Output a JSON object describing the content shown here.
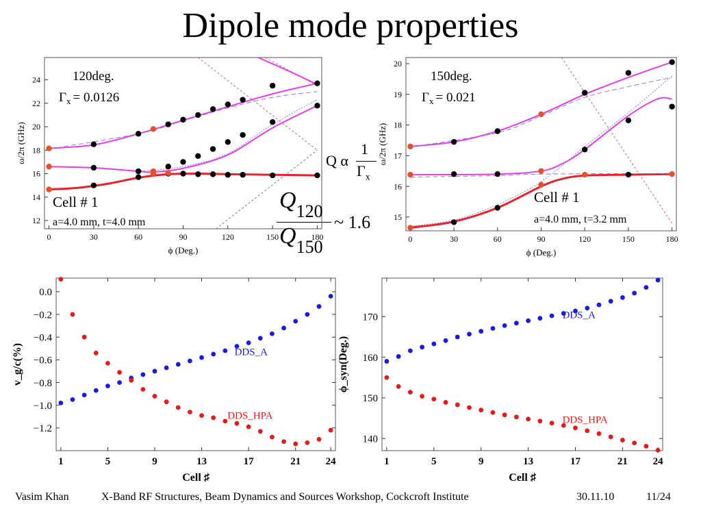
{
  "slide": {
    "title": "Dipole mode properties",
    "footer": {
      "author": "Vasim Khan",
      "event": "X-Band RF Structures, Beam Dynamics and Sources Workshop, Cockcroft Institute",
      "date": "30.11.10",
      "page": "11/24"
    },
    "eq_q_prefix": "Q α",
    "eq_q_num": "1",
    "eq_q_den": "Γ",
    "eq_q_den_sub": "x",
    "eq_ratio_num_sym": "Q",
    "eq_ratio_num_sub": "120",
    "eq_ratio_den_sym": "Q",
    "eq_ratio_den_sub": "150",
    "eq_ratio_value": "~ 1.6"
  },
  "chart_data": [
    {
      "type": "line",
      "id": "disp120",
      "ylabel": "ω/2π (GHz)",
      "xlabel": "ϕ (Deg.)",
      "xlim": [
        -3,
        183
      ],
      "ylim": [
        11.3,
        25.9
      ],
      "xticks": [
        0,
        30,
        60,
        90,
        120,
        150,
        180
      ],
      "yticks": [
        12,
        14,
        16,
        18,
        20,
        22,
        24
      ],
      "annot": {
        "phase": "120deg.",
        "gamma_sym": "Γ",
        "gamma_sub": "x",
        "gamma_val": "= 0.0126",
        "cell": "Cell # 1",
        "dims": "a=4.0 mm, t=4.0 mm"
      },
      "light_lines": [
        {
          "color": "#c0648c",
          "points": [
            [
              100,
              25.9
            ],
            [
              180,
              18
            ]
          ]
        },
        {
          "color": "#c0648c",
          "points": [
            [
              145,
              25.9
            ],
            [
              180,
              23.5
            ]
          ]
        },
        {
          "color": "#6c6cd2",
          "points": [
            [
              112,
              11.3
            ],
            [
              180,
              18
            ]
          ]
        }
      ],
      "series": [
        {
          "color": "#e6232d",
          "width": 3,
          "points": [
            [
              0,
              14.65
            ],
            [
              20,
              14.8
            ],
            [
              40,
              15.15
            ],
            [
              60,
              15.65
            ],
            [
              80,
              15.95
            ],
            [
              100,
              16.0
            ],
            [
              120,
              15.95
            ],
            [
              150,
              15.9
            ],
            [
              180,
              15.85
            ]
          ]
        },
        {
          "color": "#e63ce6",
          "width": 2,
          "points": [
            [
              0,
              16.6
            ],
            [
              30,
              16.5
            ],
            [
              60,
              16.2
            ],
            [
              70,
              16.15
            ],
            [
              90,
              16.45
            ],
            [
              120,
              17.6
            ],
            [
              150,
              19.9
            ],
            [
              180,
              21.8
            ]
          ]
        },
        {
          "color": "#e63ce6",
          "width": 2,
          "points": [
            [
              0,
              18.15
            ],
            [
              30,
              18.45
            ],
            [
              60,
              19.4
            ],
            [
              90,
              20.55
            ],
            [
              120,
              21.7
            ],
            [
              150,
              22.8
            ],
            [
              180,
              23.7
            ]
          ]
        },
        {
          "color": "#e63ce6",
          "width": 2,
          "points": [
            [
              135,
              26.2
            ],
            [
              160,
              24.8
            ],
            [
              180,
              23.6
            ]
          ]
        },
        {
          "color": "#8080dc",
          "width": 1,
          "dash": "7,4",
          "points": [
            [
              0,
              18.1
            ],
            [
              60,
              19.4
            ],
            [
              90,
              20.5
            ],
            [
              120,
              21.6
            ],
            [
              150,
              22.5
            ],
            [
              180,
              23.0
            ]
          ]
        },
        {
          "color": "#8080dc",
          "width": 1,
          "dash": "2,2",
          "points": [
            [
              60,
              16.2
            ],
            [
              90,
              16.6
            ],
            [
              120,
              17.7
            ],
            [
              150,
              20.2
            ],
            [
              180,
              22.3
            ]
          ]
        }
      ],
      "markers": [
        {
          "color": "#000000",
          "points": [
            [
              30,
              18.5
            ],
            [
              60,
              19.4
            ],
            [
              80,
              20.2
            ],
            [
              90,
              20.6
            ],
            [
              100,
              21.0
            ],
            [
              110,
              21.5
            ],
            [
              120,
              21.9
            ],
            [
              130,
              22.3
            ],
            [
              150,
              23.5
            ],
            [
              180,
              23.7
            ],
            [
              30,
              16.5
            ],
            [
              60,
              16.2
            ],
            [
              80,
              16.6
            ],
            [
              90,
              17.0
            ],
            [
              100,
              17.5
            ],
            [
              110,
              18.1
            ],
            [
              120,
              18.7
            ],
            [
              130,
              19.3
            ],
            [
              150,
              20.4
            ],
            [
              180,
              21.8
            ],
            [
              30,
              15.0
            ],
            [
              60,
              15.7
            ],
            [
              80,
              16.0
            ],
            [
              90,
              16.0
            ],
            [
              100,
              15.95
            ],
            [
              110,
              15.95
            ],
            [
              120,
              15.9
            ],
            [
              130,
              15.9
            ],
            [
              150,
              15.85
            ],
            [
              180,
              15.85
            ]
          ]
        },
        {
          "color": "#e6502d",
          "points": [
            [
              0,
              14.65
            ],
            [
              70,
              16.0
            ],
            [
              80,
              16.05
            ],
            [
              0,
              16.6
            ],
            [
              70,
              16.2
            ],
            [
              0,
              18.15
            ],
            [
              70,
              19.8
            ]
          ]
        }
      ]
    },
    {
      "type": "line",
      "id": "disp150",
      "ylabel": "ω/2π (GHz)",
      "xlabel": "ϕ (Deg.)",
      "xlim": [
        -3,
        183
      ],
      "ylim": [
        14.55,
        20.2
      ],
      "xticks": [
        0,
        30,
        60,
        90,
        120,
        150,
        180
      ],
      "yticks": [
        15,
        16,
        17,
        18,
        19,
        20
      ],
      "annot": {
        "phase": "150deg.",
        "gamma_sym": "Γ",
        "gamma_sub": "x",
        "gamma_val": "= 0.021",
        "cell": "Cell # 1",
        "dims": "a=4.0 mm, t=3.2 mm"
      },
      "light_lines": [
        {
          "color": "#c0648c",
          "points": [
            [
              104,
              20.2
            ],
            [
              180,
              14.8
            ]
          ]
        }
      ],
      "series": [
        {
          "color": "#e6232d",
          "width": 3,
          "points": [
            [
              0,
              14.65
            ],
            [
              30,
              14.85
            ],
            [
              60,
              15.3
            ],
            [
              90,
              16.0
            ],
            [
              105,
              16.25
            ],
            [
              120,
              16.35
            ],
            [
              150,
              16.38
            ],
            [
              180,
              16.4
            ]
          ]
        },
        {
          "color": "#e63ce6",
          "width": 2,
          "points": [
            [
              0,
              16.38
            ],
            [
              60,
              16.4
            ],
            [
              90,
              16.5
            ],
            [
              105,
              16.75
            ],
            [
              120,
              17.2
            ],
            [
              150,
              18.3
            ],
            [
              170,
              18.85
            ],
            [
              180,
              18.85
            ]
          ]
        },
        {
          "color": "#e63ce6",
          "width": 2,
          "points": [
            [
              0,
              17.3
            ],
            [
              30,
              17.45
            ],
            [
              60,
              17.8
            ],
            [
              90,
              18.35
            ],
            [
              120,
              19.0
            ],
            [
              150,
              19.55
            ],
            [
              180,
              20.05
            ]
          ]
        },
        {
          "color": "#8080dc",
          "width": 1,
          "dash": "7,4",
          "points": [
            [
              0,
              17.28
            ],
            [
              60,
              17.75
            ],
            [
              90,
              18.3
            ],
            [
              120,
              18.9
            ],
            [
              150,
              19.25
            ],
            [
              180,
              19.55
            ]
          ]
        },
        {
          "color": "#8080dc",
          "width": 1,
          "dash": "7,4",
          "points": [
            [
              0,
              16.3
            ],
            [
              60,
              16.35
            ],
            [
              90,
              16.4
            ],
            [
              180,
              16.42
            ]
          ]
        },
        {
          "color": "#8080dc",
          "width": 1,
          "dash": "2,2",
          "points": [
            [
              0,
              14.7
            ],
            [
              30,
              14.9
            ],
            [
              60,
              15.4
            ],
            [
              90,
              16.15
            ],
            [
              120,
              17.3
            ],
            [
              150,
              18.4
            ],
            [
              180,
              19.6
            ]
          ]
        }
      ],
      "markers": [
        {
          "color": "#000000",
          "points": [
            [
              30,
              17.45
            ],
            [
              60,
              17.8
            ],
            [
              120,
              19.05
            ],
            [
              150,
              19.7
            ],
            [
              180,
              20.05
            ],
            [
              30,
              16.4
            ],
            [
              60,
              16.4
            ],
            [
              120,
              17.2
            ],
            [
              150,
              18.15
            ],
            [
              180,
              18.6
            ],
            [
              30,
              14.83
            ],
            [
              60,
              15.3
            ],
            [
              150,
              16.38
            ]
          ]
        },
        {
          "color": "#e6502d",
          "points": [
            [
              0,
              14.65
            ],
            [
              90,
              16.05
            ],
            [
              120,
              16.38
            ],
            [
              180,
              16.4
            ],
            [
              0,
              16.38
            ],
            [
              90,
              16.5
            ],
            [
              0,
              17.3
            ],
            [
              90,
              18.35
            ]
          ]
        }
      ]
    },
    {
      "type": "scatter",
      "id": "vg",
      "ylabel": "v_g/c(%)",
      "xlabel": "Cell ♯",
      "xlim": [
        0.6,
        24.4
      ],
      "ylim": [
        -1.4,
        0.12
      ],
      "xticks": [
        1,
        5,
        9,
        13,
        17,
        21,
        24
      ],
      "yticks": [
        0.0,
        -0.2,
        -0.4,
        -0.6,
        -0.8,
        -1.0,
        -1.2
      ],
      "ytick_labels": [
        "0.0",
        "−0.2",
        "−0.4",
        "−0.6",
        "−0.8",
        "−1.0",
        "−1.2"
      ],
      "series": [
        {
          "name": "DDS_A",
          "color": "#1a1ae6",
          "x": [
            1,
            2,
            3,
            4,
            5,
            6,
            7,
            8,
            9,
            10,
            11,
            12,
            13,
            14,
            15,
            16,
            17,
            18,
            19,
            20,
            21,
            22,
            23,
            24
          ],
          "values": [
            -0.98,
            -0.95,
            -0.91,
            -0.87,
            -0.83,
            -0.8,
            -0.76,
            -0.73,
            -0.7,
            -0.67,
            -0.64,
            -0.61,
            -0.58,
            -0.55,
            -0.52,
            -0.48,
            -0.45,
            -0.41,
            -0.37,
            -0.32,
            -0.26,
            -0.2,
            -0.13,
            -0.04
          ]
        },
        {
          "name": "DDS_HPA",
          "color": "#e61a1a",
          "x": [
            1,
            2,
            3,
            4,
            5,
            6,
            7,
            8,
            9,
            10,
            11,
            12,
            13,
            14,
            15,
            16,
            17,
            18,
            19,
            20,
            21,
            22,
            23,
            24
          ],
          "values": [
            0.11,
            -0.2,
            -0.4,
            -0.54,
            -0.63,
            -0.71,
            -0.78,
            -0.86,
            -0.92,
            -0.97,
            -1.02,
            -1.06,
            -1.09,
            -1.11,
            -1.14,
            -1.16,
            -1.19,
            -1.23,
            -1.28,
            -1.32,
            -1.34,
            -1.33,
            -1.3,
            -1.22
          ]
        }
      ],
      "legend_pos": [
        {
          "x": 15.8,
          "y": -0.56
        },
        {
          "x": 15.2,
          "y": -1.12
        }
      ]
    },
    {
      "type": "scatter",
      "id": "phisyn",
      "ylabel": "ϕ_syn(Deg.)",
      "xlabel": "Cell ♯",
      "xlim": [
        0.6,
        24.4
      ],
      "ylim": [
        137.0,
        179.5
      ],
      "xticks": [
        1,
        5,
        9,
        13,
        17,
        21,
        24
      ],
      "yticks": [
        140,
        150,
        160,
        170
      ],
      "series": [
        {
          "name": "DDS_A",
          "color": "#1a1ae6",
          "x": [
            1,
            2,
            3,
            4,
            5,
            6,
            7,
            8,
            9,
            10,
            11,
            12,
            13,
            14,
            15,
            16,
            17,
            18,
            19,
            20,
            21,
            22,
            23,
            24
          ],
          "values": [
            159.0,
            160.2,
            161.6,
            162.5,
            163.3,
            164.1,
            165.0,
            165.7,
            166.4,
            167.1,
            167.8,
            168.4,
            169.0,
            169.6,
            170.2,
            170.8,
            171.4,
            172.1,
            172.9,
            173.8,
            174.7,
            175.8,
            177.2,
            179.0
          ]
        },
        {
          "name": "DDS_HPA",
          "color": "#e61a1a",
          "x": [
            1,
            2,
            3,
            4,
            5,
            6,
            7,
            8,
            9,
            10,
            11,
            12,
            13,
            14,
            15,
            16,
            17,
            18,
            19,
            20,
            21,
            22,
            23,
            24
          ],
          "values": [
            155.0,
            152.8,
            151.4,
            150.4,
            149.7,
            148.9,
            148.3,
            147.6,
            147.0,
            146.4,
            145.8,
            145.3,
            144.8,
            144.3,
            143.8,
            143.2,
            142.6,
            141.9,
            141.2,
            140.4,
            139.6,
            138.9,
            138.1,
            137.1
          ]
        }
      ],
      "legend_pos": [
        {
          "x": 15.9,
          "y": 169.6
        },
        {
          "x": 15.9,
          "y": 143.8
        }
      ]
    }
  ]
}
